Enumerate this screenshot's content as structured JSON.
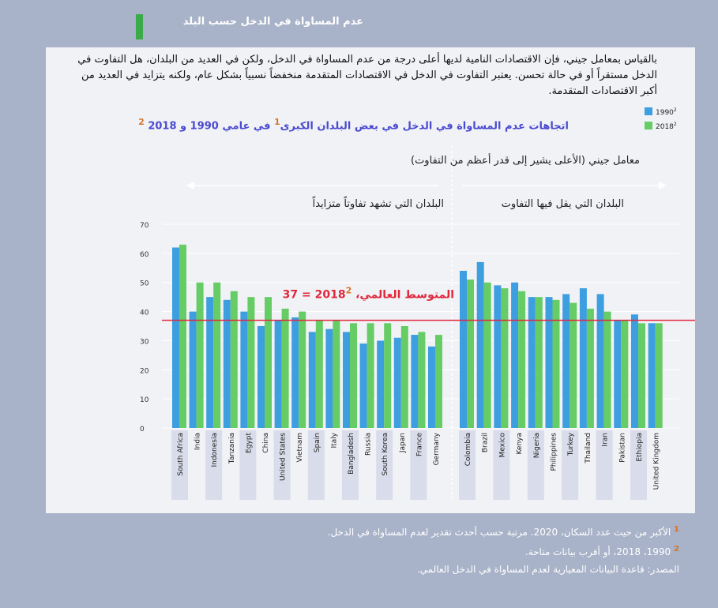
{
  "title": "عدم المساواة في الدخل حسب البلد",
  "paragraph": "بالقياس بمعامل جيني، فإن الاقتصادات النامية لديها أعلى درجة من عدم المساواة في الدخل، ولكن في العديد من البلدان، هل التفاوت في الدخل مستقراً أو في حالة تحسن. يعتبر التفاوت في الدخل في الاقتصادات المتقدمة منخفضاً نسبياً بشكل عام، ولكنه يتزايد في العديد من أكبر الاقتصادات المتقدمة.",
  "footnotes": [
    {
      "marker": "1",
      "text": "الأكبر من حيث عدد السكان، 2020. مرتبة حسب أحدث تقدير لعدم المساواة في الدخل."
    },
    {
      "marker": "2",
      "text": "1990، 2018، أو أقرب بيانات متاحة."
    }
  ],
  "source": "المصدر: قاعدة البيانات المعيارية لعدم المساواة في الدخل العالمي.",
  "chart_data": {
    "type": "bar",
    "subtitle_parts": [
      "اتجاهات عدم المساواة في الدخل في بعض البلدان الكبرى",
      "1",
      "في عامي 1990 و 2018",
      "2"
    ],
    "ylabel": "معامل جيني (الأعلى يشير إلى قدر أعظم من التفاوت)",
    "group_labels": [
      "البلدان التي تشهد تفاوتاً متزايداً",
      "البلدان التي يقل فيها التفاوت"
    ],
    "categories": [
      "South Africa",
      "India",
      "Indonesia",
      "Tanzania",
      "Egypt",
      "China",
      "United States",
      "Vietnam",
      "Spain",
      "Italy",
      "Bangladesh",
      "Russia",
      "South Korea",
      "Japan",
      "France",
      "Germany",
      "Colombia",
      "Brazil",
      "Mexico",
      "Kenya",
      "Nigeria",
      "Philippines",
      "Turkey",
      "Thailand",
      "Iran",
      "Pakistan",
      "Ethiopia",
      "United Kingdom"
    ],
    "series": [
      {
        "name": "1990",
        "name_marker": "2",
        "color": "#3d9ee0",
        "values": [
          62,
          40,
          45,
          44,
          40,
          35,
          37,
          38,
          33,
          34,
          33,
          29,
          30,
          31,
          32,
          28,
          54,
          57,
          49,
          50,
          45,
          45,
          46,
          48,
          46,
          37,
          39,
          36
        ]
      },
      {
        "name": "2018",
        "name_marker": "2",
        "color": "#66cc66",
        "values": [
          63,
          50,
          50,
          47,
          45,
          45,
          41,
          40,
          37,
          37,
          36,
          36,
          36,
          35,
          33,
          32,
          51,
          50,
          48,
          47,
          45,
          44,
          43,
          41,
          40,
          37,
          36,
          36
        ]
      }
    ],
    "reference_line": {
      "value": 37,
      "label": "37 = المتوسط العالمي، 2018",
      "marker": "2",
      "color": "#e0283c"
    },
    "ylim": [
      0,
      70
    ],
    "yticks": [
      0,
      10,
      20,
      30,
      40,
      50,
      60,
      70
    ]
  }
}
